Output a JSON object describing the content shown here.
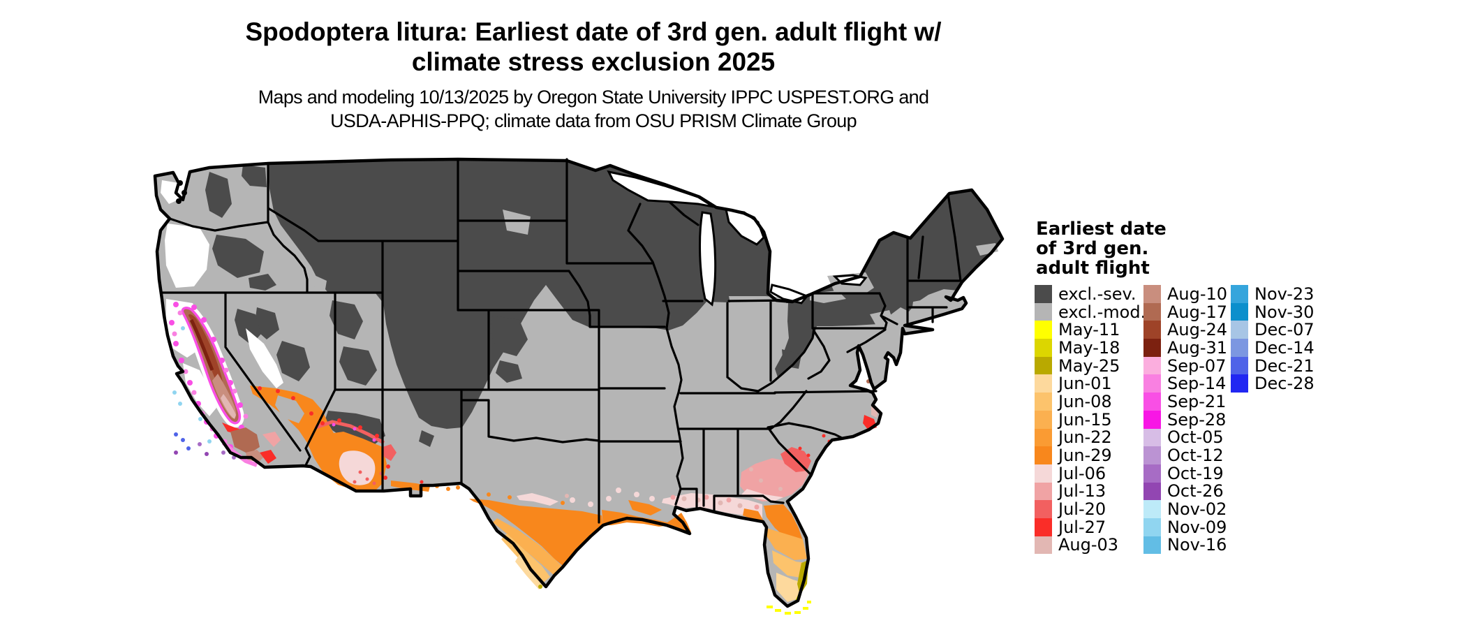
{
  "title": {
    "line1": "Spodoptera litura: Earliest date of 3rd gen. adult flight w/",
    "line2": "climate stress exclusion 2025"
  },
  "subtitle": {
    "line1": "Maps and modeling 10/13/2025 by Oregon State University IPPC USPEST.ORG and",
    "line2": "USDA-APHIS-PPQ; climate data from OSU PRISM Climate Group"
  },
  "legend": {
    "title_lines": [
      "Earliest date",
      "of 3rd gen.",
      "adult flight"
    ],
    "columns": [
      {
        "items": [
          {
            "label": "excl.-sev.",
            "key": "excl_sev"
          },
          {
            "label": "excl.-mod.",
            "key": "excl_mod"
          },
          {
            "label": "May-11",
            "key": "may_11"
          },
          {
            "label": "May-18",
            "key": "may_18"
          },
          {
            "label": "May-25",
            "key": "may_25"
          },
          {
            "label": "Jun-01",
            "key": "jun_01"
          },
          {
            "label": "Jun-08",
            "key": "jun_08"
          },
          {
            "label": "Jun-15",
            "key": "jun_15"
          },
          {
            "label": "Jun-22",
            "key": "jun_22"
          },
          {
            "label": "Jun-29",
            "key": "jun_29"
          },
          {
            "label": "Jul-06",
            "key": "jul_06"
          },
          {
            "label": "Jul-13",
            "key": "jul_13"
          },
          {
            "label": "Jul-20",
            "key": "jul_20"
          },
          {
            "label": "Jul-27",
            "key": "jul_27"
          },
          {
            "label": "Aug-03",
            "key": "aug_03"
          }
        ]
      },
      {
        "items": [
          {
            "label": "Aug-10",
            "key": "aug_10"
          },
          {
            "label": "Aug-17",
            "key": "aug_17"
          },
          {
            "label": "Aug-24",
            "key": "aug_24"
          },
          {
            "label": "Aug-31",
            "key": "aug_31"
          },
          {
            "label": "Sep-07",
            "key": "sep_07"
          },
          {
            "label": "Sep-14",
            "key": "sep_14"
          },
          {
            "label": "Sep-21",
            "key": "sep_21"
          },
          {
            "label": "Sep-28",
            "key": "sep_28"
          },
          {
            "label": "Oct-05",
            "key": "oct_05"
          },
          {
            "label": "Oct-12",
            "key": "oct_12"
          },
          {
            "label": "Oct-19",
            "key": "oct_19"
          },
          {
            "label": "Oct-26",
            "key": "oct_26"
          },
          {
            "label": "Nov-02",
            "key": "nov_02"
          },
          {
            "label": "Nov-09",
            "key": "nov_09"
          },
          {
            "label": "Nov-16",
            "key": "nov_16"
          }
        ]
      },
      {
        "items": [
          {
            "label": "Nov-23",
            "key": "nov_23"
          },
          {
            "label": "Nov-30",
            "key": "nov_30"
          },
          {
            "label": "Dec-07",
            "key": "dec_07"
          },
          {
            "label": "Dec-14",
            "key": "dec_14"
          },
          {
            "label": "Dec-21",
            "key": "dec_21"
          },
          {
            "label": "Dec-28",
            "key": "dec_28"
          }
        ]
      }
    ]
  },
  "palette": {
    "excl_sev": "#4b4b4b",
    "excl_mod": "#b5b5b5",
    "may_11": "#ffff00",
    "may_18": "#dcd600",
    "may_25": "#b9a900",
    "jun_01": "#fdd99d",
    "jun_08": "#fcc36c",
    "jun_15": "#fbb050",
    "jun_22": "#fa9b33",
    "jun_29": "#f8871c",
    "jul_06": "#f5d8d8",
    "jul_13": "#f0a3a4",
    "jul_20": "#f26060",
    "jul_27": "#fa2d28",
    "aug_03": "#e2b7b3",
    "aug_10": "#c98e7e",
    "aug_17": "#b06a52",
    "aug_24": "#9e4328",
    "aug_31": "#7c2110",
    "sep_07": "#fbaede",
    "sep_14": "#f980e1",
    "sep_21": "#f94fe5",
    "sep_28": "#f816e5",
    "oct_05": "#d7bde6",
    "oct_12": "#bb93d3",
    "oct_19": "#a76cc5",
    "oct_26": "#9246b2",
    "nov_02": "#bdeaf8",
    "nov_09": "#90d5f0",
    "nov_16": "#62bde5",
    "nov_23": "#35a5dc",
    "nov_30": "#0c8fcc",
    "dec_07": "#a7c5e5",
    "dec_14": "#7c97e1",
    "dec_21": "#4f63e8",
    "dec_28": "#2127f2",
    "no_data": "#ffffff",
    "border": "#000000"
  },
  "map": {
    "regions_summary": [
      {
        "name": "northern-tier-and-rockies",
        "value": "excl.-sev."
      },
      {
        "name": "central-and-southern-plains",
        "value": "excl.-mod."
      },
      {
        "name": "california-central-valley",
        "value": "Aug-10 to Aug-31"
      },
      {
        "name": "california-coast-ring",
        "value": "Sep-14 to Sep-28 with Oct/Nov/Dec specks"
      },
      {
        "name": "southwest-arizona-mojave",
        "value": "Jun-29 with Jul-06 to Jul-27 fringe"
      },
      {
        "name": "south-texas",
        "value": "Jun-29 grading to Jun-01 at tip"
      },
      {
        "name": "louisiana-coast",
        "value": "Jun-29"
      },
      {
        "name": "gulf-coast-ms-al-fl-panhandle",
        "value": "Jul-06 / Jul-13"
      },
      {
        "name": "georgia-coastal-plain",
        "value": "Jul-13 with Jul-20/Jul-27 cluster"
      },
      {
        "name": "north-carolina-outer-banks",
        "value": "Jul-27"
      },
      {
        "name": "florida-peninsula",
        "value": "Jun-29 grading to May-25 at tip"
      },
      {
        "name": "florida-keys",
        "value": "May-11"
      },
      {
        "name": "oregon-coast-west",
        "value": "no prediction (white)"
      }
    ]
  }
}
